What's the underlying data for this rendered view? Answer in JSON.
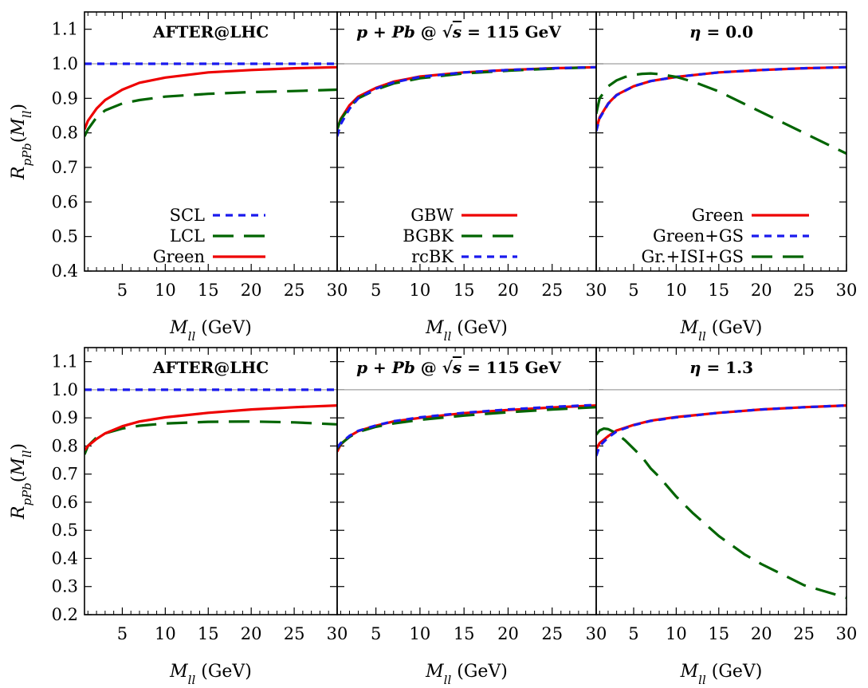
{
  "chart_data": {
    "type": "line",
    "colors": {
      "red": "#ee0000",
      "blue": "#1a1aee",
      "green": "#006400",
      "reference": "#a0a0a0"
    },
    "xlim": [
      0.6,
      30
    ],
    "x_ticks": [
      "5",
      "10",
      "15",
      "20",
      "25",
      "30"
    ],
    "xlabel_var": "M",
    "xlabel_sub": "ll",
    "xlabel_unit": "(GeV)",
    "ylabel_var": "R",
    "ylabel_sub": "pPb",
    "ylabel_arg_open": "(",
    "ylabel_arg_var": "M",
    "ylabel_arg_sub": "ll",
    "ylabel_arg_close": ")",
    "rows": [
      {
        "ylim": [
          0.4,
          1.15
        ],
        "y_ticks": [
          "0.4",
          "0.5",
          "0.6",
          "0.7",
          "0.8",
          "0.9",
          "1.0",
          "1.1"
        ],
        "panels": [
          {
            "title_parts": [
              "AFTER@LHC"
            ],
            "series": [
              {
                "name": "SCL",
                "color": "blue",
                "dash": "short",
                "x": [
                  0.6,
                  30
                ],
                "y": [
                  1.0,
                  1.0
                ]
              },
              {
                "name": "LCL",
                "color": "green",
                "dash": "long",
                "x": [
                  0.6,
                  1,
                  2,
                  3,
                  5,
                  7,
                  10,
                  15,
                  20,
                  25,
                  30
                ],
                "y": [
                  0.79,
                  0.81,
                  0.845,
                  0.865,
                  0.885,
                  0.895,
                  0.905,
                  0.913,
                  0.918,
                  0.921,
                  0.925
                ]
              },
              {
                "name": "Green",
                "color": "red",
                "dash": "solid",
                "x": [
                  0.6,
                  1,
                  2,
                  3,
                  5,
                  7,
                  10,
                  15,
                  20,
                  25,
                  30
                ],
                "y": [
                  0.81,
                  0.835,
                  0.87,
                  0.895,
                  0.925,
                  0.945,
                  0.96,
                  0.975,
                  0.982,
                  0.987,
                  0.99
                ]
              }
            ],
            "legend": [
              {
                "label": "SCL",
                "color": "blue",
                "dash": "short"
              },
              {
                "label": "LCL",
                "color": "green",
                "dash": "long"
              },
              {
                "label": "Green",
                "color": "red",
                "dash": "solid"
              }
            ]
          },
          {
            "title_parts": [
              "p",
              " + ",
              "Pb",
              " @ ",
              "√",
              "s",
              " = 115 GeV"
            ],
            "series": [
              {
                "name": "GBW",
                "color": "red",
                "dash": "solid",
                "x": [
                  0.6,
                  1,
                  2,
                  3,
                  5,
                  7,
                  10,
                  15,
                  20,
                  25,
                  30
                ],
                "y": [
                  0.81,
                  0.84,
                  0.88,
                  0.905,
                  0.93,
                  0.948,
                  0.963,
                  0.975,
                  0.982,
                  0.987,
                  0.99
                ]
              },
              {
                "name": "BGBK",
                "color": "green",
                "dash": "long",
                "x": [
                  0.6,
                  1,
                  2,
                  3,
                  5,
                  7,
                  10,
                  15,
                  20,
                  25,
                  30
                ],
                "y": [
                  0.81,
                  0.838,
                  0.875,
                  0.9,
                  0.925,
                  0.943,
                  0.958,
                  0.972,
                  0.98,
                  0.986,
                  0.99
                ]
              },
              {
                "name": "rcBK",
                "color": "blue",
                "dash": "short",
                "x": [
                  0.6,
                  1,
                  2,
                  3,
                  5,
                  7,
                  10,
                  15,
                  20,
                  25,
                  30
                ],
                "y": [
                  0.79,
                  0.825,
                  0.87,
                  0.9,
                  0.928,
                  0.946,
                  0.962,
                  0.975,
                  0.982,
                  0.987,
                  0.99
                ]
              }
            ],
            "legend": [
              {
                "label": "GBW",
                "color": "red",
                "dash": "solid"
              },
              {
                "label": "BGBK",
                "color": "green",
                "dash": "long"
              },
              {
                "label": "rcBK",
                "color": "blue",
                "dash": "short"
              }
            ]
          },
          {
            "title_parts": [
              "η",
              " = 0.0"
            ],
            "series": [
              {
                "name": "Green",
                "color": "red",
                "dash": "solid",
                "x": [
                  0.6,
                  1,
                  2,
                  3,
                  5,
                  7,
                  10,
                  15,
                  20,
                  25,
                  30
                ],
                "y": [
                  0.81,
                  0.845,
                  0.885,
                  0.91,
                  0.935,
                  0.95,
                  0.962,
                  0.975,
                  0.982,
                  0.987,
                  0.99
                ]
              },
              {
                "name": "Green+GS",
                "color": "blue",
                "dash": "short",
                "x": [
                  0.6,
                  1,
                  2,
                  3,
                  5,
                  7,
                  10,
                  15,
                  20,
                  25,
                  30
                ],
                "y": [
                  0.805,
                  0.842,
                  0.884,
                  0.909,
                  0.935,
                  0.95,
                  0.962,
                  0.975,
                  0.982,
                  0.987,
                  0.99
                ]
              },
              {
                "name": "Gr.+ISI+GS",
                "color": "green",
                "dash": "long",
                "x": [
                  0.6,
                  1,
                  2,
                  3,
                  4,
                  5,
                  6,
                  7,
                  8,
                  10,
                  12,
                  15,
                  20,
                  25,
                  30
                ],
                "y": [
                  0.855,
                  0.9,
                  0.935,
                  0.952,
                  0.962,
                  0.968,
                  0.971,
                  0.972,
                  0.97,
                  0.962,
                  0.948,
                  0.92,
                  0.86,
                  0.8,
                  0.74
                ]
              }
            ],
            "legend": [
              {
                "label": "Green",
                "color": "red",
                "dash": "solid"
              },
              {
                "label": "Green+GS",
                "color": "blue",
                "dash": "short"
              },
              {
                "label": "Gr.+ISI+GS",
                "color": "green",
                "dash": "long"
              }
            ]
          }
        ]
      },
      {
        "ylim": [
          0.2,
          1.15
        ],
        "y_ticks": [
          "0.2",
          "0.3",
          "0.4",
          "0.5",
          "0.6",
          "0.7",
          "0.8",
          "0.9",
          "1.0",
          "1.1"
        ],
        "panels": [
          {
            "title_parts": [
              "AFTER@LHC"
            ],
            "series": [
              {
                "name": "SCL",
                "color": "blue",
                "dash": "short",
                "x": [
                  0.6,
                  30
                ],
                "y": [
                  1.0,
                  1.0
                ]
              },
              {
                "name": "LCL",
                "color": "green",
                "dash": "long",
                "x": [
                  0.6,
                  1,
                  2,
                  3,
                  5,
                  7,
                  10,
                  15,
                  20,
                  25,
                  30
                ],
                "y": [
                  0.77,
                  0.8,
                  0.83,
                  0.845,
                  0.862,
                  0.872,
                  0.88,
                  0.886,
                  0.887,
                  0.884,
                  0.877
                ]
              },
              {
                "name": "Green",
                "color": "red",
                "dash": "solid",
                "x": [
                  0.6,
                  1,
                  2,
                  3,
                  5,
                  7,
                  10,
                  15,
                  20,
                  25,
                  30
                ],
                "y": [
                  0.785,
                  0.8,
                  0.825,
                  0.845,
                  0.87,
                  0.887,
                  0.902,
                  0.918,
                  0.93,
                  0.938,
                  0.944
                ]
              }
            ]
          },
          {
            "title_parts": [
              "p",
              " + ",
              "Pb",
              " @ ",
              "√",
              "s",
              " = 115 GeV"
            ],
            "series": [
              {
                "name": "GBW",
                "color": "red",
                "dash": "solid",
                "x": [
                  0.6,
                  1,
                  2,
                  3,
                  5,
                  7,
                  10,
                  15,
                  20,
                  25,
                  30
                ],
                "y": [
                  0.78,
                  0.805,
                  0.835,
                  0.853,
                  0.872,
                  0.887,
                  0.9,
                  0.917,
                  0.928,
                  0.937,
                  0.944
                ]
              },
              {
                "name": "BGBK",
                "color": "green",
                "dash": "long",
                "x": [
                  0.6,
                  1,
                  2,
                  3,
                  5,
                  7,
                  10,
                  15,
                  20,
                  25,
                  30
                ],
                "y": [
                  0.79,
                  0.807,
                  0.832,
                  0.85,
                  0.868,
                  0.88,
                  0.893,
                  0.908,
                  0.92,
                  0.93,
                  0.938
                ]
              },
              {
                "name": "rcBK",
                "color": "blue",
                "dash": "short",
                "x": [
                  0.6,
                  1,
                  2,
                  3,
                  5,
                  7,
                  10,
                  15,
                  20,
                  25,
                  30
                ],
                "y": [
                  0.795,
                  0.81,
                  0.836,
                  0.854,
                  0.873,
                  0.888,
                  0.902,
                  0.918,
                  0.93,
                  0.939,
                  0.946
                ]
              }
            ]
          },
          {
            "title_parts": [
              "η",
              " = 1.3"
            ],
            "series": [
              {
                "name": "Green",
                "color": "red",
                "dash": "solid",
                "x": [
                  0.6,
                  1,
                  2,
                  3,
                  5,
                  7,
                  10,
                  15,
                  20,
                  25,
                  30
                ],
                "y": [
                  0.79,
                  0.81,
                  0.835,
                  0.855,
                  0.875,
                  0.89,
                  0.903,
                  0.918,
                  0.93,
                  0.938,
                  0.944
                ]
              },
              {
                "name": "Green+GS",
                "color": "blue",
                "dash": "short",
                "x": [
                  0.6,
                  1,
                  2,
                  3,
                  5,
                  7,
                  10,
                  15,
                  20,
                  25,
                  30
                ],
                "y": [
                  0.765,
                  0.8,
                  0.83,
                  0.852,
                  0.874,
                  0.889,
                  0.902,
                  0.918,
                  0.93,
                  0.938,
                  0.944
                ]
              },
              {
                "name": "Gr.+ISI+GS",
                "color": "green",
                "dash": "long",
                "x": [
                  0.6,
                  1,
                  1.5,
                  2,
                  3,
                  4,
                  5,
                  6,
                  7,
                  8,
                  10,
                  12,
                  15,
                  18,
                  20,
                  25,
                  30
                ],
                "y": [
                  0.84,
                  0.855,
                  0.862,
                  0.86,
                  0.845,
                  0.82,
                  0.79,
                  0.76,
                  0.72,
                  0.69,
                  0.62,
                  0.56,
                  0.48,
                  0.415,
                  0.38,
                  0.305,
                  0.26
                ]
              }
            ]
          }
        ]
      }
    ]
  }
}
